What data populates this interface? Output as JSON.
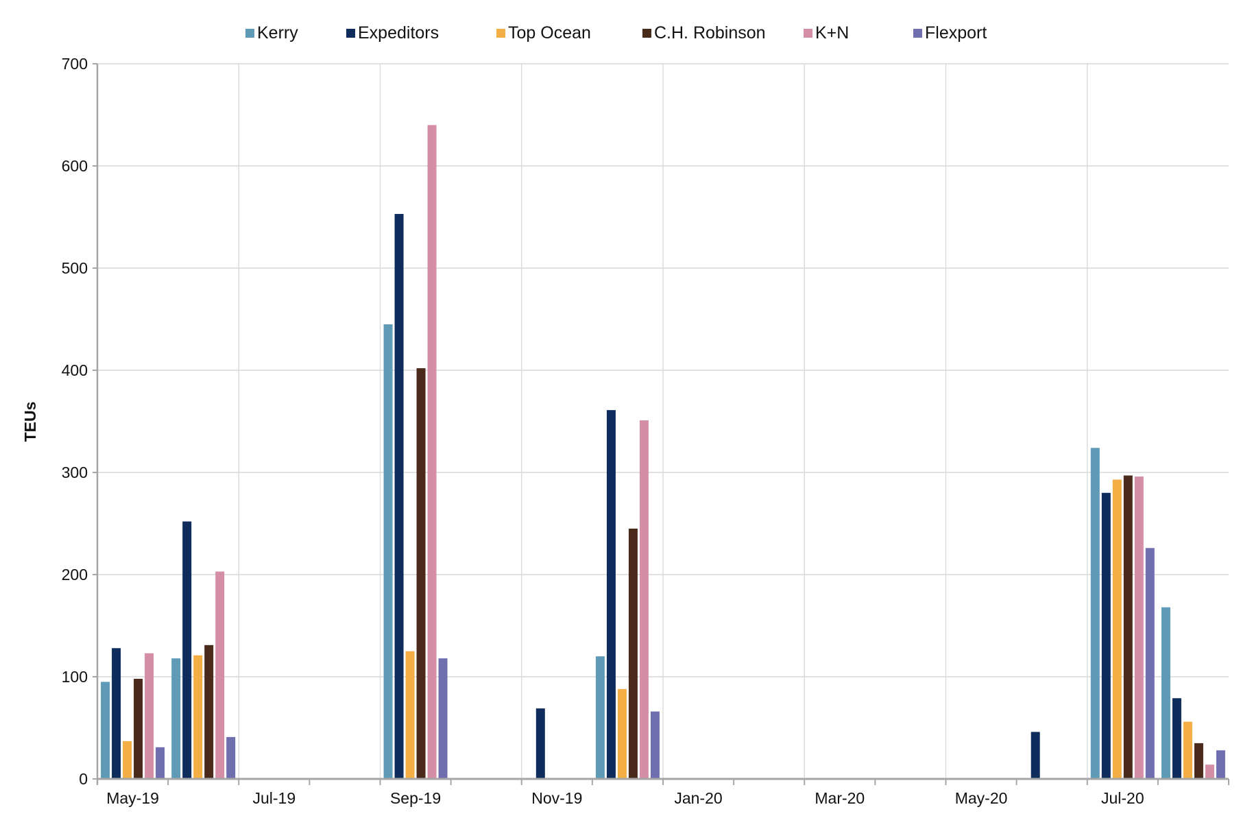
{
  "chart_data": {
    "type": "bar",
    "title": "",
    "xlabel": "",
    "ylabel": "TEUs",
    "ylim": [
      0,
      700
    ],
    "yticks": [
      0,
      100,
      200,
      300,
      400,
      500,
      600,
      700
    ],
    "grid": true,
    "legend_position": "top-center",
    "categories": [
      "May-19",
      "Jun-19",
      "Jul-19",
      "Aug-19",
      "Sep-19",
      "Oct-19",
      "Nov-19",
      "Dec-19",
      "Jan-20",
      "Feb-20",
      "Mar-20",
      "Apr-20",
      "May-20",
      "Jun-20",
      "Jul-20",
      "Aug-20"
    ],
    "xtick_labels": [
      "May-19",
      "Jul-19",
      "Sep-19",
      "Nov-19",
      "Jan-20",
      "Mar-20",
      "May-20",
      "Jul-20"
    ],
    "series": [
      {
        "name": "Kerry",
        "color": "#5f9ab6",
        "values": [
          95,
          118,
          0,
          0,
          445,
          0,
          0,
          120,
          0,
          0,
          0,
          0,
          0,
          0,
          324,
          168
        ]
      },
      {
        "name": "Expeditors",
        "color": "#0e2d5c",
        "values": [
          128,
          252,
          0,
          0,
          553,
          0,
          69,
          361,
          0,
          0,
          0,
          0,
          0,
          46,
          280,
          79
        ]
      },
      {
        "name": "Top Ocean",
        "color": "#f3ae45",
        "values": [
          37,
          121,
          0,
          0,
          125,
          0,
          0,
          88,
          0,
          0,
          0,
          0,
          0,
          0,
          293,
          56
        ]
      },
      {
        "name": "C.H. Robinson",
        "color": "#4a2a1b",
        "values": [
          98,
          131,
          0,
          0,
          402,
          0,
          0,
          245,
          0,
          0,
          0,
          0,
          0,
          0,
          297,
          35
        ]
      },
      {
        "name": "K+N",
        "color": "#d48fa6",
        "values": [
          123,
          203,
          0,
          0,
          640,
          0,
          0,
          351,
          0,
          0,
          0,
          0,
          0,
          0,
          296,
          14
        ]
      },
      {
        "name": "Flexport",
        "color": "#6f6fb0",
        "values": [
          31,
          41,
          0,
          0,
          118,
          0,
          0,
          66,
          0,
          0,
          0,
          0,
          0,
          0,
          226,
          28
        ]
      }
    ]
  }
}
